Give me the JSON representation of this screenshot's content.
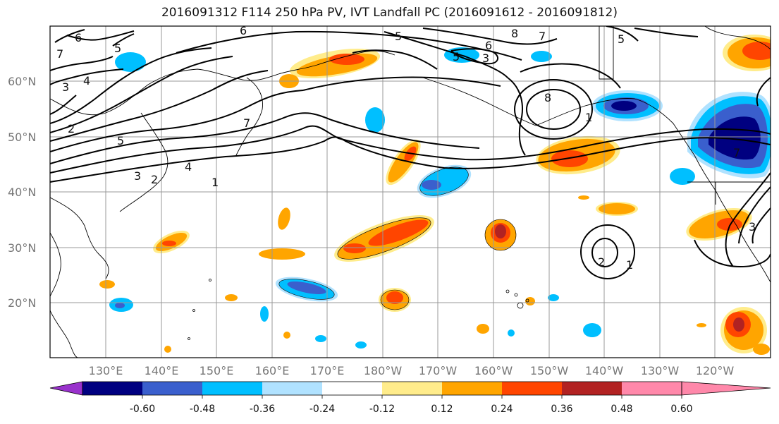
{
  "title": "2016091312 F114 250 hPa PV, IVT Landfall PC (2016091612 - 2016091812)",
  "map": {
    "lat_labels": [
      "60°N",
      "50°N",
      "40°N",
      "30°N",
      "20°N"
    ],
    "lon_labels": [
      "130°E",
      "140°E",
      "150°E",
      "160°E",
      "170°E",
      "180°W",
      "170°W",
      "160°W",
      "150°W",
      "140°W",
      "130°W",
      "120°W"
    ],
    "contour_labels": [
      "6",
      "6",
      "5",
      "5",
      "4",
      "3",
      "2",
      "5",
      "3",
      "2",
      "4",
      "1",
      "7",
      "7",
      "5",
      "8",
      "7",
      "6",
      "3",
      "8",
      "1",
      "5",
      "7",
      "2",
      "1",
      "3"
    ]
  },
  "colorbar": {
    "ticks": [
      "-0.60",
      "-0.48",
      "-0.36",
      "-0.24",
      "-0.12",
      "0.12",
      "0.24",
      "0.36",
      "0.48",
      "0.60"
    ],
    "colors": [
      "#9932cc",
      "#000080",
      "#3a5fcd",
      "#00bfff",
      "#b0e2ff",
      "#ffffff",
      "#ffec8b",
      "#ffa500",
      "#ff4500",
      "#b22222",
      "#ff88aa"
    ]
  }
}
